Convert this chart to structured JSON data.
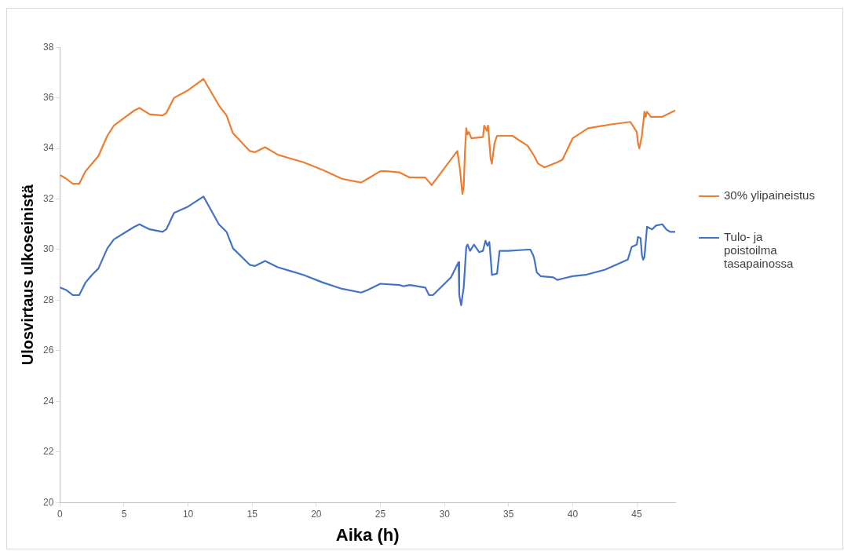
{
  "chart_data": {
    "type": "line",
    "xlabel": "Aika (h)",
    "ylabel": "Ulosvirtaus ulkoseinistä",
    "xlim": [
      0,
      48
    ],
    "xticks": [
      0,
      5,
      10,
      15,
      20,
      25,
      30,
      35,
      40,
      45
    ],
    "ylim": [
      20,
      38
    ],
    "yticks": [
      20,
      22,
      24,
      26,
      28,
      30,
      32,
      34,
      36,
      38
    ],
    "grid": false,
    "legend": "right",
    "marker": "none",
    "series": [
      {
        "name": "30% ylipaineistus",
        "color": "#ed7d31",
        "x": [
          0,
          0.5,
          1.0,
          1.5,
          2.0,
          2.5,
          3.0,
          3.7,
          4.2,
          5.0,
          5.8,
          6.2,
          7.0,
          8.0,
          8.3,
          8.9,
          10.0,
          11.2,
          12.4,
          13.0,
          13.5,
          14.8,
          15.2,
          16.0,
          17.0,
          18.0,
          19.0,
          20.5,
          22.0,
          23.5,
          24.0,
          25.0,
          25.5,
          26.5,
          27.3,
          28.5,
          29.0,
          31.0,
          31.2,
          31.4,
          31.5,
          31.6,
          31.7,
          31.8,
          31.9,
          32.1,
          33.0,
          33.1,
          33.3,
          33.4,
          33.6,
          33.7,
          33.9,
          34.1,
          35.0,
          35.3,
          36.5,
          37.0,
          37.3,
          37.8,
          38.8,
          39.2,
          40.0,
          41.2,
          43.0,
          44.5,
          45.0,
          45.1,
          45.2,
          45.4,
          45.6,
          45.7,
          45.8,
          46.1,
          47.0,
          48.0
        ],
        "values": [
          32.95,
          32.8,
          32.6,
          32.6,
          33.1,
          33.4,
          33.7,
          34.5,
          34.9,
          35.2,
          35.5,
          35.6,
          35.35,
          35.3,
          35.4,
          36.0,
          36.3,
          36.75,
          35.7,
          35.3,
          34.6,
          33.9,
          33.85,
          34.05,
          33.75,
          33.6,
          33.45,
          33.15,
          32.8,
          32.65,
          32.8,
          33.1,
          33.1,
          33.05,
          32.85,
          32.85,
          32.55,
          33.9,
          33.2,
          32.2,
          32.5,
          33.9,
          34.8,
          34.55,
          34.65,
          34.4,
          34.45,
          34.9,
          34.7,
          34.9,
          33.6,
          33.4,
          34.2,
          34.5,
          34.5,
          34.5,
          34.1,
          33.7,
          33.4,
          33.25,
          33.45,
          33.55,
          34.4,
          34.8,
          34.95,
          35.05,
          34.65,
          34.2,
          34.0,
          34.5,
          35.45,
          35.25,
          35.45,
          35.25,
          35.25,
          35.5
        ]
      },
      {
        "name": "Tulo- ja poistoilma tasapainossa",
        "color": "#4472c4",
        "x": [
          0,
          0.5,
          1.0,
          1.5,
          2.0,
          2.5,
          3.0,
          3.7,
          4.2,
          5.0,
          5.8,
          6.2,
          7.0,
          8.0,
          8.3,
          8.9,
          10.0,
          11.2,
          12.4,
          13.0,
          13.5,
          14.8,
          15.2,
          16.0,
          17.0,
          18.0,
          19.0,
          20.5,
          22.0,
          23.5,
          24.0,
          25.0,
          26.5,
          26.8,
          27.3,
          28.5,
          28.8,
          29.1,
          30.5,
          31.1,
          31.15,
          31.3,
          31.5,
          31.7,
          31.8,
          32.0,
          32.3,
          32.7,
          33.0,
          33.2,
          33.35,
          33.5,
          33.6,
          33.7,
          34.1,
          34.3,
          35.0,
          36.5,
          36.7,
          36.9,
          37.0,
          37.2,
          37.5,
          38.5,
          38.8,
          39.2,
          40.0,
          41.0,
          42.5,
          44.3,
          44.6,
          45.0,
          45.1,
          45.3,
          45.4,
          45.5,
          45.6,
          45.8,
          46.2,
          46.5,
          47.0,
          47.3,
          47.6,
          48.0
        ],
        "values": [
          28.5,
          28.4,
          28.2,
          28.2,
          28.7,
          29.0,
          29.25,
          30.05,
          30.4,
          30.65,
          30.9,
          31.0,
          30.8,
          30.7,
          30.8,
          31.45,
          31.7,
          32.1,
          31.0,
          30.7,
          30.05,
          29.4,
          29.35,
          29.55,
          29.3,
          29.15,
          29.0,
          28.7,
          28.45,
          28.3,
          28.4,
          28.65,
          28.6,
          28.55,
          28.6,
          28.5,
          28.2,
          28.2,
          28.9,
          29.5,
          28.2,
          27.8,
          28.5,
          30.1,
          30.2,
          29.95,
          30.2,
          29.9,
          29.95,
          30.35,
          30.15,
          30.3,
          29.7,
          29.0,
          29.05,
          29.95,
          29.95,
          30.0,
          30.0,
          29.8,
          29.65,
          29.1,
          28.95,
          28.9,
          28.8,
          28.85,
          28.95,
          29.0,
          29.2,
          29.6,
          30.1,
          30.2,
          30.5,
          30.45,
          29.8,
          29.6,
          29.7,
          30.9,
          30.8,
          30.95,
          31.0,
          30.8,
          30.7,
          30.7
        ]
      }
    ]
  }
}
